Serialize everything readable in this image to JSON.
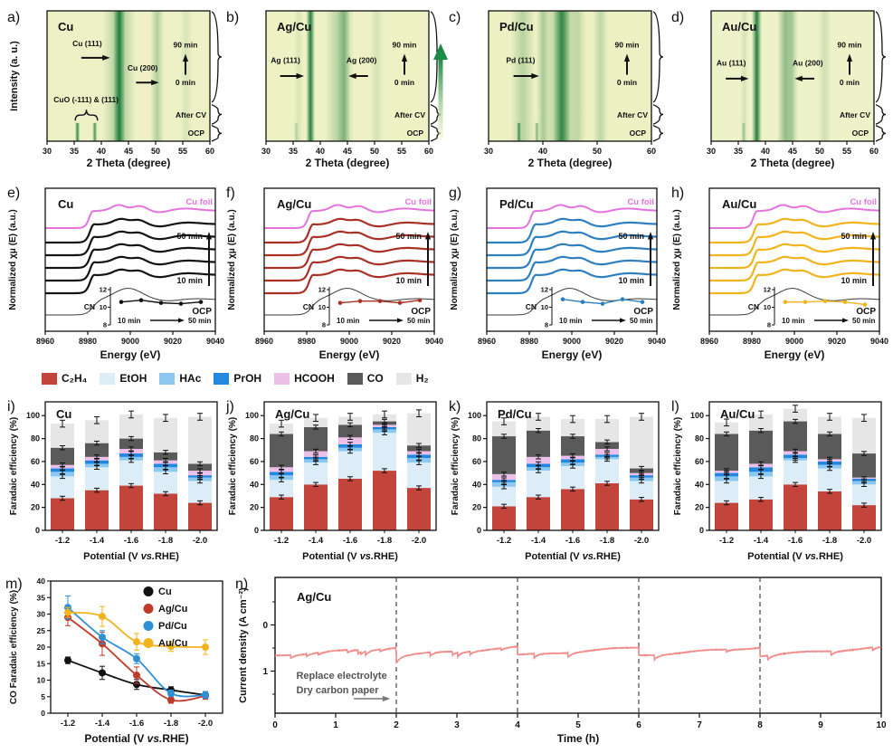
{
  "legend": {
    "products": [
      {
        "label": "C₂H₄",
        "color": "#c2443a"
      },
      {
        "label": "EtOH",
        "color": "#dcedf8"
      },
      {
        "label": "HAc",
        "color": "#8cc8f0"
      },
      {
        "label": "PrOH",
        "color": "#2288e0"
      },
      {
        "label": "HCOOH",
        "color": "#edc0ea"
      },
      {
        "label": "CO",
        "color": "#5a5a5a"
      },
      {
        "label": "H₂",
        "color": "#e6e6e6"
      }
    ]
  },
  "gradient_arrow": {
    "from": "#f7f6c9",
    "to": "#1d8a45"
  },
  "chart_data": [
    {
      "id": "a",
      "kind": "xrd",
      "type": "heatmap",
      "letter": "a)",
      "title": "Cu",
      "xlabel": "2 Theta (degree)",
      "ylabel": "Intensity (a. u.)",
      "xlim": [
        30,
        60
      ],
      "xticks": [
        30,
        35,
        40,
        45,
        50,
        55,
        60
      ],
      "bg": "#eef1c6",
      "stripe": "#1b7a3a",
      "stripes_full": [
        [
          43.3,
          0.95,
          1.1
        ],
        [
          43.3,
          0.35,
          3.0
        ],
        [
          50.3,
          0.28,
          1.3
        ],
        [
          55.6,
          0.1,
          1.2
        ]
      ],
      "stripes_bottom": [
        [
          35.6,
          0.85,
          0.45
        ],
        [
          38.8,
          0.75,
          0.45
        ]
      ],
      "annotations": [
        {
          "text": "Cu (111)",
          "tx": 37.4,
          "tyf": 0.27,
          "ax1": 36.3,
          "ax2": 41.6,
          "ayf": 0.36
        },
        {
          "text": "Cu (200)",
          "tx": 47.6,
          "tyf": 0.46,
          "ax1": 46.4,
          "ax2": 50.6,
          "ayf": 0.55
        }
      ],
      "hbrace": {
        "text": "CuO (-111) & (111)",
        "tx": 37.2,
        "tyf": 0.7,
        "x1": 35.2,
        "x2": 39.3,
        "yf": 0.8
      },
      "side": {
        "top": "90 min",
        "zero": "0 min",
        "cv": "After CV",
        "ocp": "OCP"
      }
    },
    {
      "id": "b",
      "kind": "xrd",
      "type": "heatmap",
      "letter": "b)",
      "title": "Ag/Cu",
      "xlabel": "2 Theta (degree)",
      "ylabel": "",
      "xlim": [
        30,
        60
      ],
      "xticks": [
        30,
        35,
        40,
        45,
        50,
        55,
        60
      ],
      "bg": "#edf1c4",
      "stripe": "#1b7a3a",
      "stripes_full": [
        [
          38.2,
          0.95,
          0.8
        ],
        [
          43.6,
          0.3,
          2.6
        ],
        [
          44.4,
          0.4,
          1.1
        ],
        [
          50.4,
          0.12,
          1.2
        ],
        [
          36.0,
          0.1,
          0.8
        ]
      ],
      "stripes_bottom": [
        [
          35.6,
          0.25,
          0.4
        ]
      ],
      "annotations": [
        {
          "text": "Ag (111)",
          "tx": 33.6,
          "tyf": 0.4,
          "ax1": 32.6,
          "ax2": 37.0,
          "ayf": 0.5
        },
        {
          "text": "Ag (200)",
          "tx": 47.6,
          "tyf": 0.4,
          "ax1": 48.8,
          "ax2": 45.2,
          "ayf": 0.5
        }
      ],
      "side": {
        "top": "90 min",
        "zero": "0 min",
        "cv": "After CV",
        "ocp": "OCP"
      }
    },
    {
      "id": "c",
      "kind": "xrd",
      "type": "heatmap",
      "letter": "c)",
      "title": "Pd/Cu",
      "xlabel": "2 Theta (degree)",
      "ylabel": "",
      "xlim": [
        30,
        60
      ],
      "xticks": [
        30,
        40,
        50,
        60
      ],
      "bg": "#ecf0c2",
      "stripe": "#1b7a3a",
      "stripes_full": [
        [
          43.5,
          0.85,
          1.6
        ],
        [
          43.5,
          0.3,
          4.0
        ],
        [
          40.0,
          0.3,
          1.1
        ],
        [
          36.3,
          0.25,
          2.2
        ],
        [
          50.6,
          0.22,
          1.3
        ],
        [
          46.5,
          0.15,
          1.5
        ]
      ],
      "stripes_bottom": [
        [
          35.6,
          0.8,
          0.4
        ],
        [
          38.9,
          0.5,
          0.4
        ]
      ],
      "annotations": [
        {
          "text": "Pd (111)",
          "tx": 35.9,
          "tyf": 0.4,
          "ax1": 34.6,
          "ax2": 39.3,
          "ayf": 0.5
        }
      ],
      "side": {
        "top": "90 min",
        "zero": "0 min",
        "cv": "After CV",
        "ocp": "OCP"
      }
    },
    {
      "id": "d",
      "kind": "xrd",
      "type": "heatmap",
      "letter": "d)",
      "title": "Au/Cu",
      "xlabel": "2 Theta (degree)",
      "ylabel": "",
      "xlim": [
        30,
        60
      ],
      "xticks": [
        30,
        35,
        40,
        45,
        50,
        55,
        60
      ],
      "bg": "#eef2c8",
      "stripe": "#1b7a3a",
      "stripes_full": [
        [
          38.4,
          0.95,
          0.9
        ],
        [
          43.7,
          0.45,
          1.5
        ],
        [
          44.9,
          0.3,
          1.1
        ],
        [
          50.9,
          0.15,
          1.2
        ],
        [
          36.1,
          0.12,
          0.8
        ]
      ],
      "stripes_bottom": [
        [
          36.0,
          0.35,
          0.4
        ]
      ],
      "annotations": [
        {
          "text": "Au (111)",
          "tx": 33.7,
          "tyf": 0.42,
          "ax1": 32.7,
          "ax2": 36.9,
          "ayf": 0.52
        },
        {
          "text": "Au (200)",
          "tx": 47.8,
          "tyf": 0.42,
          "ax1": 49.0,
          "ax2": 45.4,
          "ayf": 0.52
        }
      ],
      "side": {
        "top": "90 min",
        "zero": "0 min",
        "cv": "After CV",
        "ocp": "OCP"
      }
    },
    {
      "id": "e",
      "kind": "xanes",
      "type": "line",
      "letter": "e)",
      "title": "Cu",
      "color": "#141414",
      "foil_color": "#e473dd",
      "curve_labels": {
        "foil": "Cu foil",
        "t50": "50 min",
        "t10": "10 min",
        "ocp": "OCP"
      },
      "xlabel": "Energy (eV)",
      "ylabel": "Normalized χμ (E) (a.u.)",
      "xlim": [
        8960,
        9040
      ],
      "xticks": [
        8960,
        8980,
        9000,
        9020,
        9040
      ],
      "inset": {
        "label": "CN",
        "yticks": [
          12,
          10,
          8
        ],
        "x": [
          10,
          20,
          30,
          40,
          50
        ],
        "cn": [
          10.6,
          10.8,
          10.5,
          10.4,
          10.6
        ],
        "start": "10 min",
        "end": "50 min"
      }
    },
    {
      "id": "f",
      "kind": "xanes",
      "type": "line",
      "letter": "f)",
      "title": "Ag/Cu",
      "color": "#a93226",
      "foil_color": "#e473dd",
      "curve_labels": {
        "foil": "Cu foil",
        "t50": "50 min",
        "t10": "10 min",
        "ocp": "OCP"
      },
      "xlabel": "Energy (eV)",
      "ylabel": "Normalized χμ (E) (a.u.)",
      "xlim": [
        8960,
        9040
      ],
      "xticks": [
        8960,
        8980,
        9000,
        9020,
        9040
      ],
      "inset": {
        "label": "CN",
        "yticks": [
          12,
          10,
          8
        ],
        "x": [
          10,
          20,
          30,
          40,
          50
        ],
        "cn": [
          10.5,
          10.7,
          10.7,
          10.5,
          10.8
        ],
        "start": "10 min",
        "end": "50 min"
      }
    },
    {
      "id": "g",
      "kind": "xanes",
      "type": "line",
      "letter": "g)",
      "title": "Pd/Cu",
      "color": "#2d7fc1",
      "foil_color": "#e473dd",
      "curve_labels": {
        "foil": "Cu foil",
        "t50": "50 min",
        "t10": "10 min",
        "ocp": "OCP"
      },
      "xlabel": "Energy (eV)",
      "ylabel": "Normalized χμ (E) (a.u.)",
      "xlim": [
        8960,
        9040
      ],
      "xticks": [
        8960,
        8980,
        9000,
        9020,
        9040
      ],
      "inset": {
        "label": "CN",
        "yticks": [
          12,
          10,
          8
        ],
        "x": [
          10,
          20,
          30,
          40,
          50
        ],
        "cn": [
          10.9,
          10.6,
          10.4,
          10.9,
          10.6
        ],
        "start": "10 min",
        "end": "50 min"
      }
    },
    {
      "id": "h",
      "kind": "xanes",
      "type": "line",
      "letter": "h)",
      "title": "Au/Cu",
      "color": "#f1b41c",
      "foil_color": "#e473dd",
      "curve_labels": {
        "foil": "Cu foil",
        "t50": "50 min",
        "t10": "10 min",
        "ocp": "OCP"
      },
      "xlabel": "Energy (eV)",
      "ylabel": "Normalized χμ (E) (a.u.)",
      "xlim": [
        8960,
        9040
      ],
      "xticks": [
        8960,
        8980,
        9000,
        9020,
        9040
      ],
      "inset": {
        "label": "CN",
        "yticks": [
          12,
          10,
          8
        ],
        "x": [
          10,
          20,
          30,
          40,
          50
        ],
        "cn": [
          10.6,
          10.6,
          10.7,
          10.6,
          10.3
        ],
        "start": "10 min",
        "end": "50 min"
      }
    },
    {
      "id": "i",
      "kind": "febar",
      "type": "bar",
      "letter": "i)",
      "title": "Cu",
      "categories": [
        "-1.2",
        "-1.4",
        "-1.6",
        "-1.8",
        "-2.0"
      ],
      "xlabel": "Potential (V vs. RHE)",
      "ylabel": "Faradaic efficiency (%)",
      "ylim": [
        0,
        100
      ],
      "yticks": [
        0,
        20,
        40,
        60,
        80,
        100
      ],
      "series": [
        {
          "name": "C₂H₄",
          "values": [
            28,
            35,
            39,
            32,
            24
          ]
        },
        {
          "name": "EtOH",
          "values": [
            19,
            20,
            22,
            19,
            19
          ]
        },
        {
          "name": "HAc",
          "values": [
            4,
            3,
            3,
            4,
            3
          ]
        },
        {
          "name": "PrOH",
          "values": [
            3,
            3,
            3,
            3,
            2
          ]
        },
        {
          "name": "HCOOH",
          "values": [
            3,
            3,
            4,
            3,
            4
          ]
        },
        {
          "name": "CO",
          "values": [
            15,
            12,
            9,
            7,
            6
          ]
        },
        {
          "name": "H₂",
          "values": [
            21,
            20,
            21,
            30,
            41
          ]
        }
      ]
    },
    {
      "id": "j",
      "kind": "febar",
      "type": "bar",
      "letter": "j)",
      "title": "Ag/Cu",
      "categories": [
        "-1.2",
        "-1.4",
        "-1.6",
        "-1.8",
        "-2.0"
      ],
      "xlabel": "Potential (V vs. RHE)",
      "ylabel": "Faradaic efficiency (%)",
      "ylim": [
        0,
        100
      ],
      "yticks": [
        0,
        20,
        40,
        60,
        80,
        100
      ],
      "series": [
        {
          "name": "C₂H₄",
          "values": [
            29,
            40,
            45,
            52,
            37
          ]
        },
        {
          "name": "EtOH",
          "values": [
            15,
            19,
            24,
            33,
            22
          ]
        },
        {
          "name": "HAc",
          "values": [
            4,
            3,
            3,
            3,
            4
          ]
        },
        {
          "name": "PrOH",
          "values": [
            3,
            2,
            3,
            2,
            3
          ]
        },
        {
          "name": "HCOOH",
          "values": [
            4,
            5,
            6,
            2,
            3
          ]
        },
        {
          "name": "CO",
          "values": [
            29,
            21,
            11,
            3,
            5
          ]
        },
        {
          "name": "H₂",
          "values": [
            9,
            8,
            7,
            6,
            28
          ]
        }
      ]
    },
    {
      "id": "k",
      "kind": "febar",
      "type": "bar",
      "letter": "k)",
      "title": "Pd/Cu",
      "categories": [
        "-1.2",
        "-1.4",
        "-1.6",
        "-1.8",
        "-2.0"
      ],
      "xlabel": "Potential (V vs. RHE)",
      "ylabel": "Faradaic efficiency (%)",
      "ylim": [
        0,
        100
      ],
      "yticks": [
        0,
        20,
        40,
        60,
        80,
        100
      ],
      "series": [
        {
          "name": "C₂H₄",
          "values": [
            21,
            29,
            36,
            41,
            27
          ]
        },
        {
          "name": "EtOH",
          "values": [
            17,
            23,
            20,
            21,
            16
          ]
        },
        {
          "name": "HAc",
          "values": [
            4,
            3,
            3,
            2,
            3
          ]
        },
        {
          "name": "PrOH",
          "values": [
            2,
            3,
            3,
            2,
            2
          ]
        },
        {
          "name": "HCOOH",
          "values": [
            5,
            6,
            3,
            5,
            2
          ]
        },
        {
          "name": "CO",
          "values": [
            33,
            23,
            17,
            6,
            4
          ]
        },
        {
          "name": "H₂",
          "values": [
            13,
            12,
            15,
            20,
            45
          ]
        }
      ]
    },
    {
      "id": "l",
      "kind": "febar",
      "type": "bar",
      "letter": "l)",
      "title": "Au/Cu",
      "categories": [
        "-1.2",
        "-1.4",
        "-1.6",
        "-1.8",
        "-2.0"
      ],
      "xlabel": "Potential (V vs. RHE)",
      "ylabel": "Faradaic efficiency (%)",
      "ylim": [
        0,
        100
      ],
      "yticks": [
        0,
        20,
        40,
        60,
        80,
        100
      ],
      "series": [
        {
          "name": "C₂H₄",
          "values": [
            24,
            27,
            40,
            34,
            22
          ]
        },
        {
          "name": "EtOH",
          "values": [
            19,
            20,
            21,
            20,
            18
          ]
        },
        {
          "name": "HAc",
          "values": [
            4,
            4,
            2,
            3,
            3
          ]
        },
        {
          "name": "PrOH",
          "values": [
            3,
            4,
            3,
            3,
            2
          ]
        },
        {
          "name": "HCOOH",
          "values": [
            2,
            3,
            3,
            2,
            1
          ]
        },
        {
          "name": "CO",
          "values": [
            32,
            29,
            26,
            22,
            21
          ]
        },
        {
          "name": "H₂",
          "values": [
            10,
            14,
            11,
            15,
            31
          ]
        }
      ]
    },
    {
      "id": "m",
      "kind": "coline",
      "type": "line",
      "letter": "m)",
      "categories": [
        "-1.2",
        "-1.4",
        "-1.6",
        "-1.8",
        "-2.0"
      ],
      "xlabel": "Potential (V vs. RHE)",
      "ylabel": "CO Faradaic efficiency (%)",
      "ylim": [
        0,
        40
      ],
      "yticks": [
        0,
        5,
        10,
        15,
        20,
        25,
        30,
        35,
        40
      ],
      "legend_position": "top-right",
      "series": [
        {
          "name": "Cu",
          "color": "#111111",
          "values": [
            16,
            12.2,
            8.7,
            7,
            5.5
          ],
          "errors": [
            1,
            2,
            1.5,
            1,
            1
          ]
        },
        {
          "name": "Ag/Cu",
          "color": "#c0392b",
          "values": [
            29,
            21,
            11.5,
            4,
            5.2
          ],
          "errors": [
            2.5,
            3.5,
            2.5,
            1,
            1
          ]
        },
        {
          "name": "Pd/Cu",
          "color": "#2d8fd5",
          "values": [
            32,
            23,
            16.5,
            6,
            5.5
          ],
          "errors": [
            3.5,
            2,
            1.5,
            1,
            1
          ]
        },
        {
          "name": "Au/Cu",
          "color": "#f1b41c",
          "values": [
            30.5,
            29.3,
            21.6,
            20.2,
            20
          ],
          "errors": [
            1.5,
            3,
            2.5,
            1.5,
            2.2
          ]
        }
      ]
    },
    {
      "id": "n",
      "kind": "stab",
      "type": "line",
      "letter": "n)",
      "title": "Ag/Cu",
      "xlabel": "Time (h)",
      "ylabel": "Current density (A cm⁻²)",
      "xlim": [
        0,
        10
      ],
      "xticks": [
        0,
        1,
        2,
        3,
        4,
        5,
        6,
        7,
        8,
        9,
        10
      ],
      "ytick_labels": [
        "0",
        "1"
      ],
      "dashed_x": [
        2,
        4,
        6,
        8
      ],
      "color": "#f28a8a",
      "annotation_lines": [
        "Replace electrolyte",
        "Dry carbon paper"
      ],
      "drift": {
        "segments": 5,
        "seg_hours": 2,
        "start": 0.575,
        "end": 0.515
      }
    }
  ]
}
